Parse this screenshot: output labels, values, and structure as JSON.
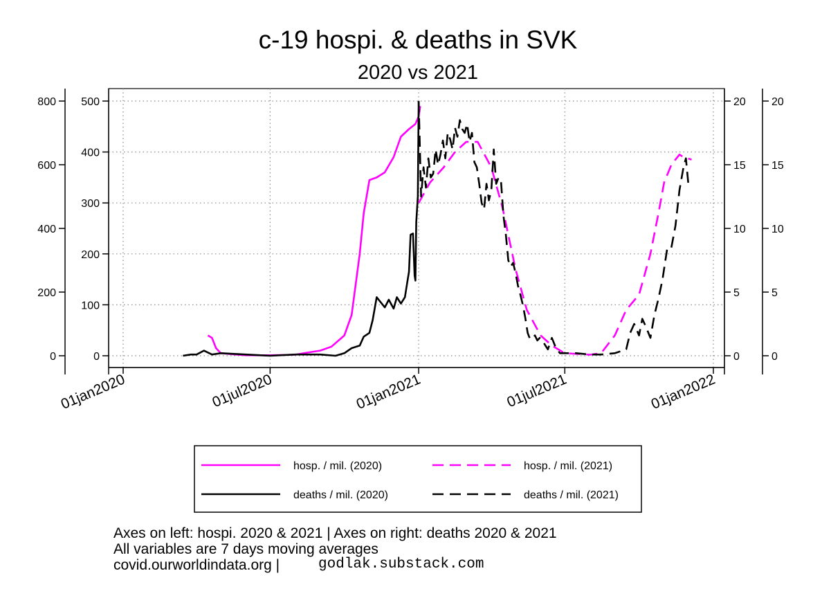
{
  "chart_data": {
    "type": "line",
    "title": "c-19 hospi. & deaths in SVK",
    "subtitle": "2020 vs 2021",
    "x_ticks": [
      "01jan2020",
      "01jul2020",
      "01jan2021",
      "01jul2021",
      "01jan2022"
    ],
    "x_range": [
      "2020-01-01",
      "2022-01-01"
    ],
    "axes": {
      "left_outer": {
        "ticks": [
          0,
          200,
          400,
          600,
          800
        ],
        "ylim": [
          0,
          800
        ]
      },
      "left_inner": {
        "ticks": [
          0,
          100,
          200,
          300,
          400,
          500
        ],
        "ylim": [
          0,
          500
        ]
      },
      "right_inner": {
        "ticks": [
          0,
          5,
          10,
          15,
          20
        ],
        "ylim": [
          0,
          20
        ]
      },
      "right_outer": {
        "ticks": [
          0,
          5,
          10,
          15,
          20
        ],
        "ylim": [
          0,
          20
        ]
      }
    },
    "grid": true,
    "series": [
      {
        "name": "hosp. / mil. (2020)",
        "color": "#ff00ff",
        "dash": "solid",
        "axis": "left_inner",
        "x": [
          "2020-04-15",
          "2020-04-20",
          "2020-04-25",
          "2020-05-01",
          "2020-05-15",
          "2020-06-01",
          "2020-07-01",
          "2020-08-01",
          "2020-08-15",
          "2020-09-01",
          "2020-09-15",
          "2020-10-01",
          "2020-10-10",
          "2020-10-20",
          "2020-10-25",
          "2020-11-01",
          "2020-11-10",
          "2020-11-20",
          "2020-12-01",
          "2020-12-10",
          "2020-12-20",
          "2020-12-28",
          "2021-01-01",
          "2021-01-03"
        ],
        "y": [
          40,
          35,
          15,
          5,
          3,
          1,
          1,
          2,
          6,
          10,
          18,
          40,
          80,
          200,
          280,
          345,
          350,
          360,
          390,
          430,
          445,
          455,
          470,
          490
        ]
      },
      {
        "name": "deaths / mil. (2020)",
        "color": "#000000",
        "dash": "solid",
        "axis": "right_inner",
        "x": [
          "2020-03-15",
          "2020-03-25",
          "2020-04-01",
          "2020-04-10",
          "2020-04-20",
          "2020-05-01",
          "2020-06-01",
          "2020-07-01",
          "2020-08-01",
          "2020-09-01",
          "2020-09-20",
          "2020-10-01",
          "2020-10-10",
          "2020-10-20",
          "2020-10-25",
          "2020-11-01",
          "2020-11-05",
          "2020-11-10",
          "2020-11-15",
          "2020-11-20",
          "2020-11-25",
          "2020-12-01",
          "2020-12-05",
          "2020-12-10",
          "2020-12-15",
          "2020-12-18",
          "2020-12-20",
          "2020-12-22",
          "2020-12-25",
          "2020-12-27",
          "2020-12-28",
          "2020-12-29",
          "2020-12-31",
          "2021-01-01"
        ],
        "y": [
          0,
          0.1,
          0.1,
          0.4,
          0.1,
          0.2,
          0.1,
          0.0,
          0.1,
          0.1,
          0.0,
          0.2,
          0.6,
          0.8,
          1.5,
          1.8,
          2.8,
          4.6,
          4.2,
          3.8,
          4.4,
          3.7,
          4.6,
          4.1,
          4.6,
          5.8,
          6.6,
          9.5,
          9.6,
          6.3,
          5.9,
          10.5,
          12.5,
          20.0
        ]
      },
      {
        "name": "hosp. / mil. (2021)",
        "color": "#ff00ff",
        "dash": "dashed",
        "axis": "left_inner",
        "x": [
          "2021-01-01",
          "2021-01-15",
          "2021-02-01",
          "2021-02-15",
          "2021-03-01",
          "2021-03-15",
          "2021-04-01",
          "2021-04-15",
          "2021-05-01",
          "2021-05-15",
          "2021-06-01",
          "2021-06-15",
          "2021-07-01",
          "2021-08-01",
          "2021-08-15",
          "2021-09-01",
          "2021-09-15",
          "2021-10-01",
          "2021-10-15",
          "2021-10-25",
          "2021-11-01",
          "2021-11-10",
          "2021-11-20",
          "2021-11-25",
          "2021-12-05"
        ],
        "y": [
          300,
          340,
          370,
          400,
          420,
          420,
          370,
          290,
          170,
          90,
          40,
          20,
          5,
          2,
          5,
          40,
          90,
          120,
          200,
          280,
          340,
          375,
          395,
          390,
          385
        ]
      },
      {
        "name": "deaths / mil. (2021)",
        "color": "#000000",
        "dash": "dashed",
        "axis": "right_inner",
        "x": [
          "2021-01-01",
          "2021-01-04",
          "2021-01-07",
          "2021-01-10",
          "2021-01-13",
          "2021-01-16",
          "2021-01-19",
          "2021-01-22",
          "2021-01-25",
          "2021-01-28",
          "2021-01-31",
          "2021-02-03",
          "2021-02-06",
          "2021-02-09",
          "2021-02-12",
          "2021-02-15",
          "2021-02-18",
          "2021-02-21",
          "2021-02-24",
          "2021-02-27",
          "2021-03-02",
          "2021-03-05",
          "2021-03-08",
          "2021-03-11",
          "2021-03-14",
          "2021-03-17",
          "2021-03-20",
          "2021-03-23",
          "2021-03-26",
          "2021-03-29",
          "2021-04-01",
          "2021-04-04",
          "2021-04-07",
          "2021-04-10",
          "2021-04-13",
          "2021-04-16",
          "2021-04-19",
          "2021-04-22",
          "2021-04-25",
          "2021-04-28",
          "2021-05-01",
          "2021-05-04",
          "2021-05-07",
          "2021-05-10",
          "2021-05-13",
          "2021-05-16",
          "2021-05-19",
          "2021-05-22",
          "2021-05-25",
          "2021-05-28",
          "2021-05-31",
          "2021-06-05",
          "2021-06-10",
          "2021-06-15",
          "2021-06-20",
          "2021-06-25",
          "2021-07-01",
          "2021-07-15",
          "2021-08-01",
          "2021-08-15",
          "2021-09-01",
          "2021-09-15",
          "2021-09-20",
          "2021-09-25",
          "2021-10-01",
          "2021-10-05",
          "2021-10-10",
          "2021-10-15",
          "2021-10-20",
          "2021-10-25",
          "2021-10-30",
          "2021-11-05",
          "2021-11-10",
          "2021-11-15",
          "2021-11-20",
          "2021-11-25",
          "2021-11-28",
          "2021-12-01",
          "2021-12-05"
        ],
        "y": [
          20.0,
          12.5,
          14.8,
          13.2,
          15.5,
          14.0,
          14.3,
          16.2,
          15.0,
          15.8,
          16.9,
          15.5,
          17.5,
          17.0,
          16.2,
          17.9,
          17.2,
          18.5,
          17.8,
          17.5,
          18.2,
          16.8,
          17.5,
          15.2,
          14.8,
          13.5,
          12.0,
          11.5,
          13.5,
          12.2,
          13.0,
          16.2,
          13.5,
          14.0,
          13.7,
          11.0,
          9.5,
          7.5,
          7.0,
          7.3,
          6.5,
          5.5,
          4.8,
          4.0,
          3.0,
          1.8,
          1.3,
          1.4,
          1.6,
          1.2,
          1.4,
          1.0,
          0.5,
          1.4,
          0.6,
          0.2,
          0.2,
          0.2,
          0.1,
          0.1,
          0.2,
          0.5,
          1.8,
          2.5,
          1.6,
          2.9,
          2.2,
          1.4,
          3.2,
          4.5,
          6.0,
          8.5,
          8.5,
          10.2,
          13.0,
          14.8,
          15.5,
          13.5,
          13.5
        ]
      }
    ],
    "legend": {
      "placement": "bottom",
      "entries": [
        {
          "label": "hosp. / mil. (2020)",
          "color": "#ff00ff",
          "dash": "solid"
        },
        {
          "label": "hosp. / mil. (2021)",
          "color": "#ff00ff",
          "dash": "dashed"
        },
        {
          "label": "deaths / mil. (2020)",
          "color": "#000000",
          "dash": "solid"
        },
        {
          "label": "deaths / mil. (2021)",
          "color": "#000000",
          "dash": "dashed"
        }
      ]
    },
    "notes": [
      "Axes on left: hospi. 2020 & 2021 | Axes on right: deaths 2020 & 2021",
      "All variables are 7 days moving averages",
      "covid.ourworldindata.org |"
    ],
    "credit": "godlak.substack.com"
  }
}
